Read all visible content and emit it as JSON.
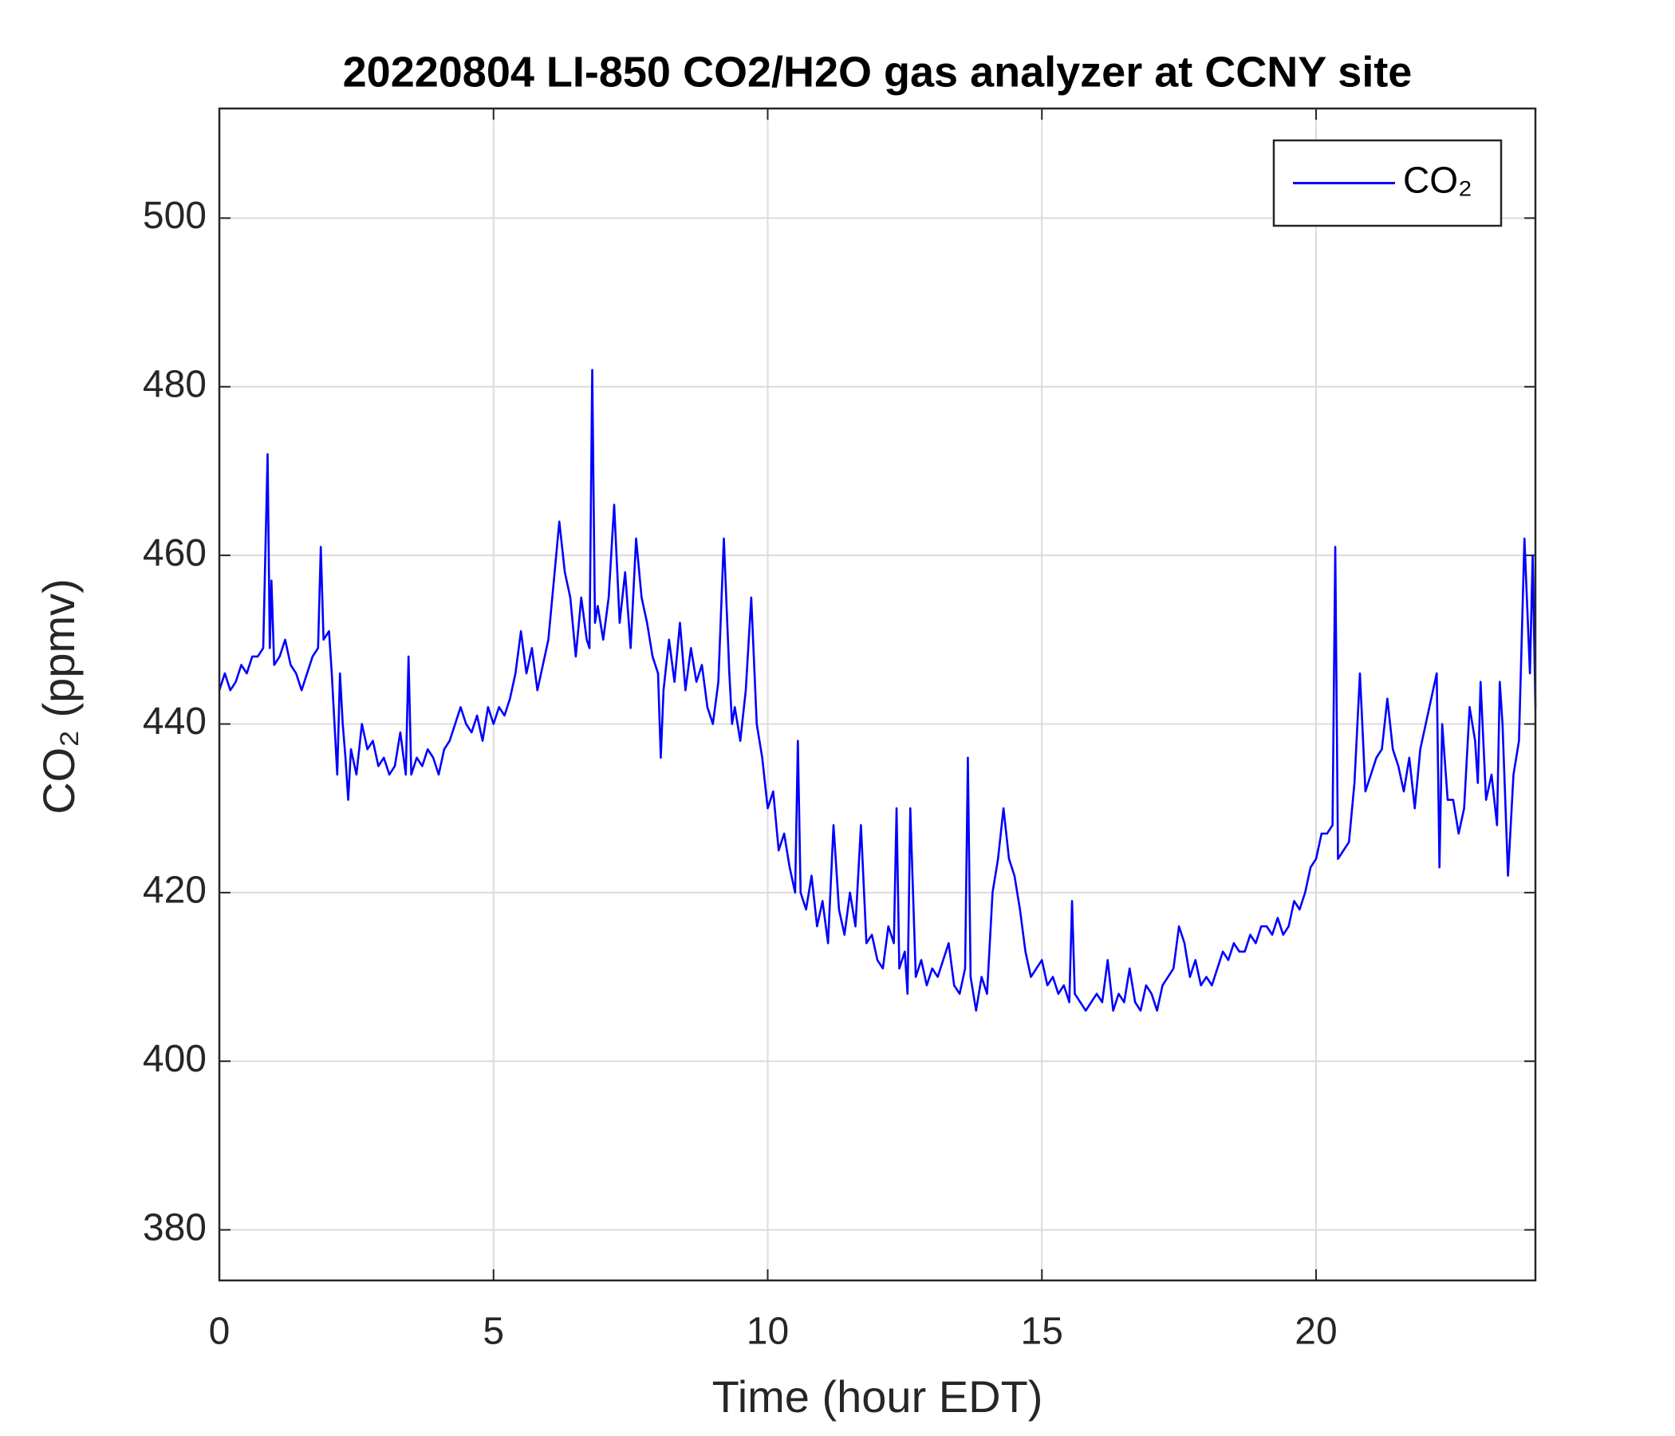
{
  "chart_data": {
    "type": "line",
    "title": "20220804 LI-850 CO2/H2O gas analyzer at CCNY site",
    "x_label": "Time (hour EDT)",
    "y_label": "CO₂ (ppmv)",
    "xlim": [
      0,
      24
    ],
    "xticks": [
      0,
      5,
      10,
      15,
      20
    ],
    "ylim": [
      374,
      513
    ],
    "yticks": [
      380,
      400,
      420,
      440,
      460,
      480,
      500
    ],
    "grid": true,
    "legend": "northeast",
    "x": [
      0,
      0.1,
      0.2,
      0.3,
      0.4,
      0.5,
      0.6,
      0.7,
      0.8,
      0.88,
      0.92,
      0.95,
      1.0,
      1.1,
      1.2,
      1.3,
      1.4,
      1.5,
      1.6,
      1.7,
      1.8,
      1.85,
      1.9,
      2.0,
      2.05,
      2.1,
      2.15,
      2.2,
      2.25,
      2.3,
      2.35,
      2.4,
      2.5,
      2.6,
      2.7,
      2.8,
      2.9,
      3.0,
      3.1,
      3.2,
      3.3,
      3.4,
      3.45,
      3.5,
      3.6,
      3.7,
      3.8,
      3.9,
      4.0,
      4.1,
      4.2,
      4.3,
      4.4,
      4.5,
      4.6,
      4.7,
      4.8,
      4.9,
      5.0,
      5.1,
      5.2,
      5.3,
      5.4,
      5.5,
      5.6,
      5.7,
      5.8,
      5.9,
      6.0,
      6.1,
      6.2,
      6.3,
      6.4,
      6.5,
      6.6,
      6.7,
      6.75,
      6.8,
      6.85,
      6.9,
      7.0,
      7.1,
      7.2,
      7.3,
      7.4,
      7.5,
      7.6,
      7.7,
      7.8,
      7.9,
      8.0,
      8.05,
      8.1,
      8.2,
      8.3,
      8.4,
      8.5,
      8.6,
      8.7,
      8.8,
      8.9,
      9.0,
      9.1,
      9.2,
      9.3,
      9.35,
      9.4,
      9.5,
      9.6,
      9.7,
      9.8,
      9.9,
      10.0,
      10.1,
      10.2,
      10.3,
      10.4,
      10.5,
      10.55,
      10.6,
      10.7,
      10.8,
      10.9,
      11.0,
      11.1,
      11.2,
      11.3,
      11.4,
      11.5,
      11.6,
      11.7,
      11.8,
      11.9,
      12.0,
      12.1,
      12.2,
      12.3,
      12.35,
      12.4,
      12.5,
      12.55,
      12.6,
      12.7,
      12.8,
      12.9,
      13.0,
      13.1,
      13.2,
      13.3,
      13.4,
      13.5,
      13.6,
      13.65,
      13.7,
      13.8,
      13.9,
      14.0,
      14.1,
      14.2,
      14.3,
      14.4,
      14.5,
      14.6,
      14.7,
      14.8,
      14.9,
      15.0,
      15.1,
      15.2,
      15.3,
      15.4,
      15.5,
      15.55,
      15.6,
      15.7,
      15.8,
      15.9,
      16.0,
      16.1,
      16.2,
      16.3,
      16.4,
      16.5,
      16.6,
      16.7,
      16.8,
      16.9,
      17.0,
      17.1,
      17.2,
      17.3,
      17.4,
      17.5,
      17.6,
      17.7,
      17.8,
      17.9,
      18.0,
      18.1,
      18.2,
      18.3,
      18.4,
      18.5,
      18.6,
      18.7,
      18.8,
      18.9,
      19.0,
      19.1,
      19.2,
      19.3,
      19.4,
      19.5,
      19.6,
      19.7,
      19.8,
      19.9,
      20.0,
      20.1,
      20.2,
      20.3,
      20.35,
      20.4,
      20.5,
      20.6,
      20.7,
      20.8,
      20.9,
      21.0,
      21.1,
      21.2,
      21.3,
      21.4,
      21.5,
      21.6,
      21.7,
      21.8,
      21.9,
      22.0,
      22.1,
      22.2,
      22.25,
      22.3,
      22.4,
      22.5,
      22.6,
      22.7,
      22.8,
      22.9,
      22.95,
      23.0,
      23.1,
      23.2,
      23.3,
      23.35,
      23.4,
      23.5,
      23.6,
      23.7,
      23.8,
      23.9,
      23.95,
      24.0
    ],
    "series": [
      {
        "name": "CO₂",
        "color": "#0000ff",
        "values": [
          444,
          446,
          444,
          445,
          447,
          446,
          448,
          448,
          449,
          472,
          449,
          457,
          447,
          448,
          450,
          447,
          446,
          444,
          446,
          448,
          449,
          461,
          450,
          451,
          446,
          440,
          434,
          446,
          440,
          436,
          431,
          437,
          434,
          440,
          437,
          438,
          435,
          436,
          434,
          435,
          439,
          434,
          448,
          434,
          436,
          435,
          437,
          436,
          434,
          437,
          438,
          440,
          442,
          440,
          439,
          441,
          438,
          442,
          440,
          442,
          441,
          443,
          446,
          451,
          446,
          449,
          444,
          447,
          450,
          457,
          464,
          458,
          455,
          448,
          455,
          450,
          449,
          482,
          452,
          454,
          450,
          455,
          466,
          452,
          458,
          449,
          462,
          455,
          452,
          448,
          446,
          436,
          444,
          450,
          445,
          452,
          444,
          449,
          445,
          447,
          442,
          440,
          445,
          462,
          446,
          440,
          442,
          438,
          444,
          455,
          440,
          436,
          430,
          432,
          425,
          427,
          423,
          420,
          438,
          420,
          418,
          422,
          416,
          419,
          414,
          428,
          418,
          415,
          420,
          416,
          428,
          414,
          415,
          412,
          411,
          416,
          414,
          430,
          411,
          413,
          408,
          430,
          410,
          412,
          409,
          411,
          410,
          412,
          414,
          409,
          408,
          411,
          436,
          410,
          406,
          410,
          408,
          420,
          424,
          430,
          424,
          422,
          418,
          413,
          410,
          411,
          412,
          409,
          410,
          408,
          409,
          407,
          419,
          408,
          407,
          406,
          407,
          408,
          407,
          412,
          406,
          408,
          407,
          411,
          407,
          406,
          409,
          408,
          406,
          409,
          410,
          411,
          416,
          414,
          410,
          412,
          409,
          410,
          409,
          411,
          413,
          412,
          414,
          413,
          413,
          415,
          414,
          416,
          416,
          415,
          417,
          415,
          416,
          419,
          418,
          420,
          423,
          424,
          427,
          427,
          428,
          461,
          424,
          425,
          426,
          433,
          446,
          432,
          434,
          436,
          437,
          443,
          437,
          435,
          432,
          436,
          430,
          437,
          440,
          443,
          446,
          423,
          440,
          431,
          431,
          427,
          430,
          442,
          438,
          433,
          445,
          431,
          434,
          428,
          445,
          440,
          422,
          434,
          438,
          462,
          446,
          460,
          442
        ]
      }
    ]
  }
}
